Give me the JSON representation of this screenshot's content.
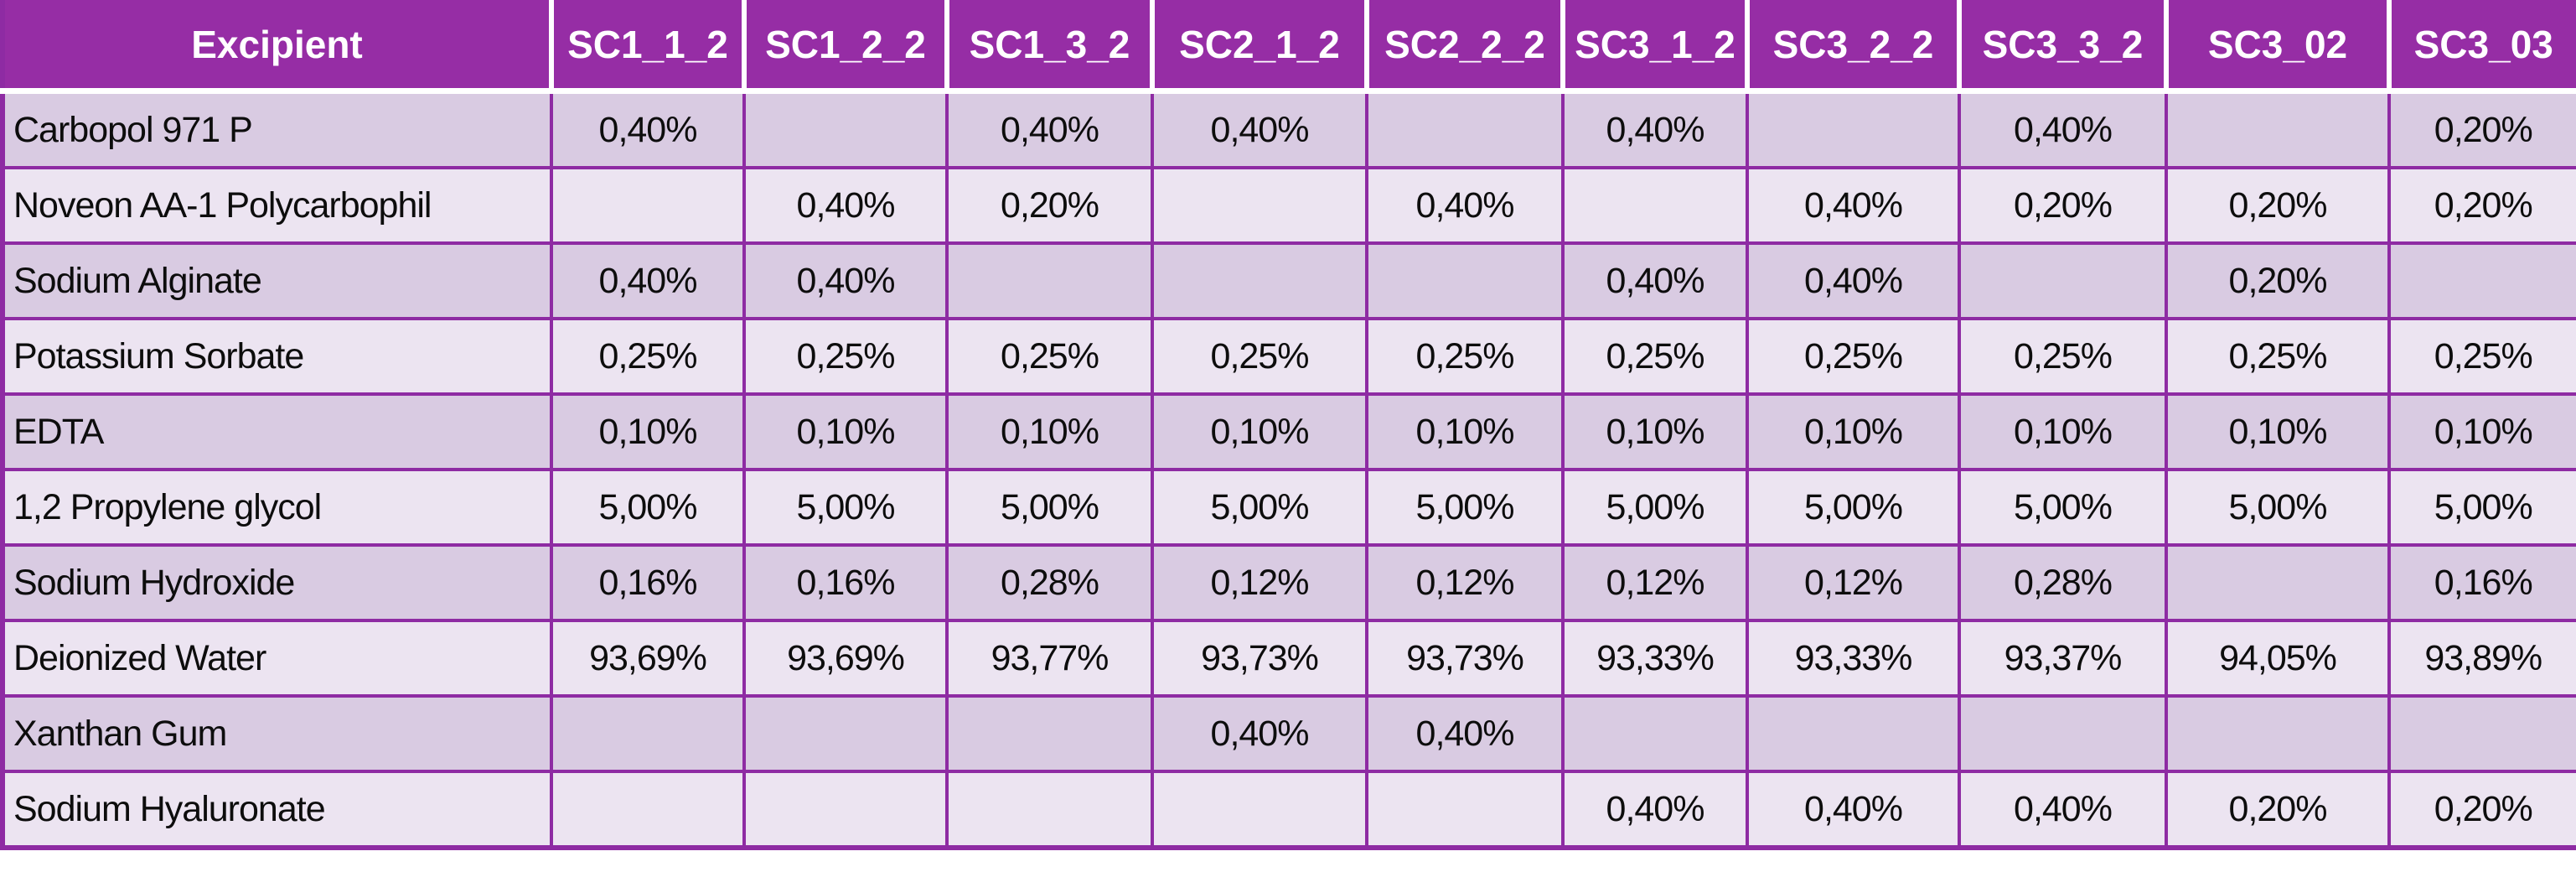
{
  "colors": {
    "header_bg": "#962da5",
    "header_text": "#ffffff",
    "row_dark": "#d9cbe2",
    "row_light": "#ece4f1",
    "grid": "#8e2ba3",
    "body_text": "#0d0d0d"
  },
  "table": {
    "header": {
      "excipient_label": "Excipient",
      "columns": [
        "SC1_1_2",
        "SC1_2_2",
        "SC1_3_2",
        "SC2_1_2",
        "SC2_2_2",
        "SC3_1_2",
        "SC3_2_2",
        "SC3_3_2",
        "SC3_02",
        "SC3_03"
      ]
    },
    "rows": [
      {
        "excipient": "Carbopol 971 P",
        "values": [
          "0,40%",
          "",
          "0,40%",
          "0,40%",
          "",
          "0,40%",
          "",
          "0,40%",
          "",
          "0,20%"
        ]
      },
      {
        "excipient": "Noveon AA-1 Polycarbophil",
        "values": [
          "",
          "0,40%",
          "0,20%",
          "",
          "0,40%",
          "",
          "0,40%",
          "0,20%",
          "0,20%",
          "0,20%"
        ]
      },
      {
        "excipient": "Sodium Alginate",
        "values": [
          "0,40%",
          "0,40%",
          "",
          "",
          "",
          "0,40%",
          "0,40%",
          "",
          "0,20%",
          ""
        ]
      },
      {
        "excipient": "Potassium Sorbate",
        "values": [
          "0,25%",
          "0,25%",
          "0,25%",
          "0,25%",
          "0,25%",
          "0,25%",
          "0,25%",
          "0,25%",
          "0,25%",
          "0,25%"
        ]
      },
      {
        "excipient": "EDTA",
        "values": [
          "0,10%",
          "0,10%",
          "0,10%",
          "0,10%",
          "0,10%",
          "0,10%",
          "0,10%",
          "0,10%",
          "0,10%",
          "0,10%"
        ]
      },
      {
        "excipient": "1,2 Propylene glycol",
        "values": [
          "5,00%",
          "5,00%",
          "5,00%",
          "5,00%",
          "5,00%",
          "5,00%",
          "5,00%",
          "5,00%",
          "5,00%",
          "5,00%"
        ]
      },
      {
        "excipient": "Sodium Hydroxide",
        "values": [
          "0,16%",
          "0,16%",
          "0,28%",
          "0,12%",
          "0,12%",
          "0,12%",
          "0,12%",
          "0,28%",
          "",
          "0,16%"
        ]
      },
      {
        "excipient": "Deionized Water",
        "values": [
          "93,69%",
          "93,69%",
          "93,77%",
          "93,73%",
          "93,73%",
          "93,33%",
          "93,33%",
          "93,37%",
          "94,05%",
          "93,89%"
        ]
      },
      {
        "excipient": "Xanthan Gum",
        "values": [
          "",
          "",
          "",
          "0,40%",
          "0,40%",
          "",
          "",
          "",
          "",
          ""
        ]
      },
      {
        "excipient": "Sodium Hyaluronate",
        "values": [
          "",
          "",
          "",
          "",
          "",
          "0,40%",
          "0,40%",
          "0,40%",
          "0,20%",
          "0,20%"
        ]
      }
    ]
  }
}
